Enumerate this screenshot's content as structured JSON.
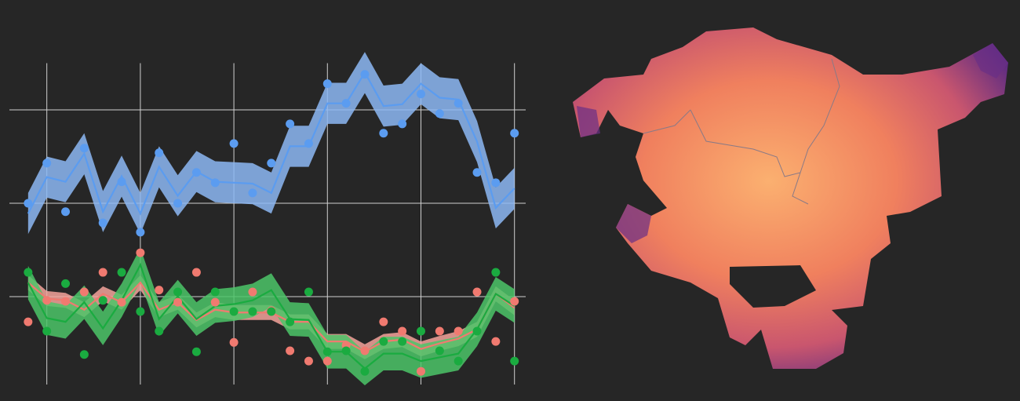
{
  "chart_data": {
    "type": "line",
    "x": [
      0,
      1,
      2,
      3,
      4,
      5,
      6,
      7,
      8,
      9,
      10,
      11,
      12,
      13,
      14,
      15,
      16,
      17,
      18,
      19,
      20,
      21,
      22,
      23,
      24,
      25,
      26
    ],
    "xlim": [
      -1,
      26.6
    ],
    "xticks": [
      1,
      6,
      11,
      16,
      21,
      26
    ],
    "ylim": [
      0,
      3.5
    ],
    "yticks": [
      1,
      2,
      3
    ],
    "grid": true,
    "series": [
      {
        "color": "#5b9cf0",
        "band_color": "#8db8f4",
        "band": 0.22,
        "values": [
          1.89,
          2.28,
          2.23,
          2.53,
          1.91,
          2.29,
          1.89,
          2.39,
          2.08,
          2.34,
          2.23,
          2.22,
          2.21,
          2.11,
          2.61,
          2.61,
          3.07,
          3.07,
          3.4,
          3.04,
          3.06,
          3.28,
          3.13,
          3.11,
          2.66,
          1.95,
          2.16
        ],
        "points": [
          2.0,
          2.43,
          1.91,
          2.59,
          1.79,
          2.23,
          1.69,
          2.54,
          2.0,
          2.33,
          2.22,
          2.64,
          2.11,
          2.43,
          2.85,
          2.64,
          3.28,
          3.07,
          3.38,
          2.75,
          2.85,
          3.17,
          2.96,
          3.07,
          2.33,
          2.22,
          2.75
        ]
      },
      {
        "color": "#f07a70",
        "band_color": "#f5a39b",
        "band": 0.08,
        "values": [
          1.15,
          0.98,
          0.96,
          0.86,
          1.03,
          0.94,
          1.15,
          0.86,
          0.94,
          0.75,
          0.86,
          0.83,
          0.83,
          0.83,
          0.73,
          0.73,
          0.52,
          0.52,
          0.41,
          0.52,
          0.54,
          0.44,
          0.5,
          0.55,
          0.65,
          1.03,
          0.88
        ],
        "points": [
          0.73,
          0.96,
          0.95,
          1.05,
          1.26,
          0.94,
          1.47,
          1.07,
          0.94,
          1.26,
          0.94,
          0.51,
          1.05,
          0.85,
          0.42,
          0.31,
          0.31,
          0.48,
          0.42,
          0.73,
          0.63,
          0.2,
          0.63,
          0.63,
          1.05,
          0.52,
          0.95
        ]
      },
      {
        "color": "#1aab40",
        "band_color": "#4cc668",
        "band": 0.18,
        "values": [
          1.15,
          0.77,
          0.73,
          0.94,
          0.66,
          0.96,
          1.34,
          0.76,
          1.0,
          0.76,
          0.9,
          0.92,
          0.96,
          1.07,
          0.76,
          0.75,
          0.41,
          0.41,
          0.23,
          0.39,
          0.39,
          0.31,
          0.35,
          0.39,
          0.65,
          1.03,
          0.9
        ],
        "points": [
          1.26,
          0.63,
          1.14,
          0.38,
          0.96,
          1.26,
          0.84,
          0.63,
          1.05,
          0.41,
          1.05,
          0.84,
          0.84,
          0.84,
          0.73,
          1.05,
          0.41,
          0.42,
          0.2,
          0.52,
          0.52,
          0.63,
          0.42,
          0.31,
          0.63,
          1.26,
          0.31
        ]
      }
    ]
  }
}
